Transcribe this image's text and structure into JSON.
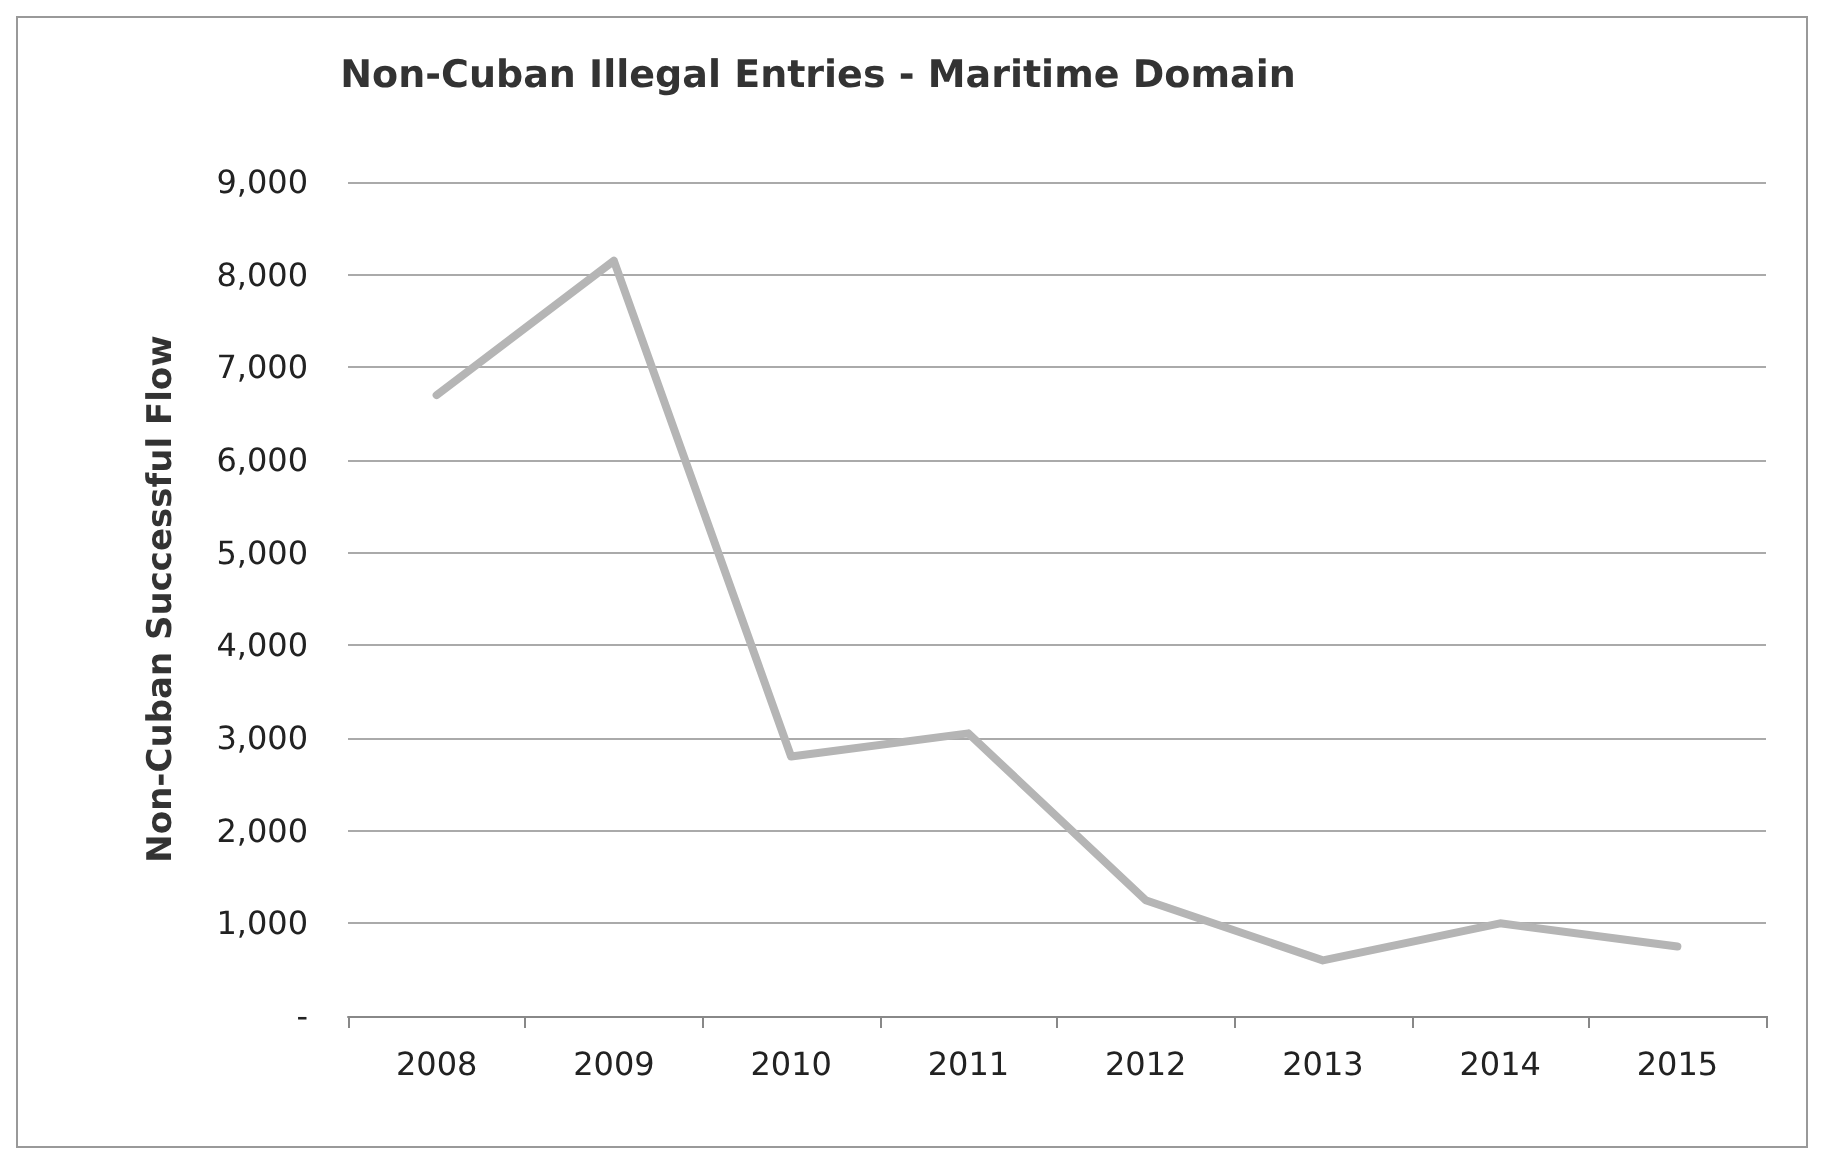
{
  "chart_data": {
    "type": "line",
    "title": "Non-Cuban Illegal Entries - Maritime Domain",
    "ylabel": "Non-Cuban Successful Flow",
    "categories": [
      "2008",
      "2009",
      "2010",
      "2011",
      "2012",
      "2013",
      "2014",
      "2015"
    ],
    "series": [
      {
        "color": "#b5b5b5",
        "values": [
          6700,
          8150,
          2800,
          3050,
          1250,
          600,
          1000,
          750
        ]
      }
    ],
    "ylim": [
      0,
      9000
    ],
    "yticks": [
      {
        "value": 0,
        "label": "-"
      },
      {
        "value": 1000,
        "label": "1,000"
      },
      {
        "value": 2000,
        "label": "2,000"
      },
      {
        "value": 3000,
        "label": "3,000"
      },
      {
        "value": 4000,
        "label": "4,000"
      },
      {
        "value": 5000,
        "label": "5,000"
      },
      {
        "value": 6000,
        "label": "6,000"
      },
      {
        "value": 7000,
        "label": "7,000"
      },
      {
        "value": 8000,
        "label": "8,000"
      },
      {
        "value": 9000,
        "label": "9,000"
      }
    ],
    "grid": "y",
    "marker": "none",
    "line_style": "solid"
  }
}
